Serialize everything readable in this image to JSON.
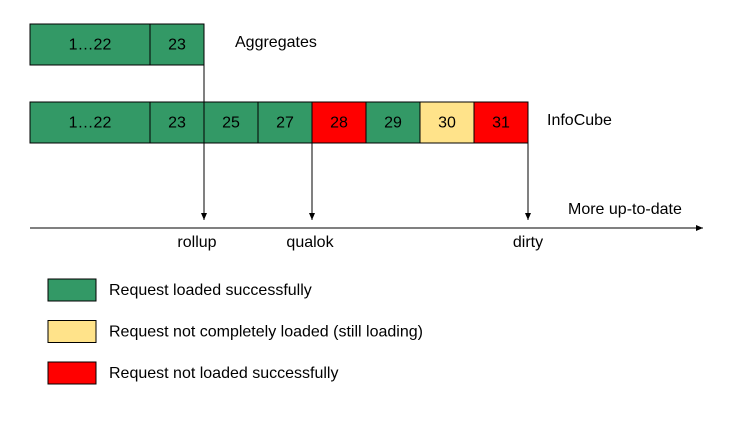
{
  "aggregates": {
    "label": "Aggregates",
    "cells": [
      {
        "label": "1…22",
        "color": "#339966"
      },
      {
        "label": "23",
        "color": "#339966"
      }
    ]
  },
  "infocube": {
    "label": "InfoCube",
    "cells": [
      {
        "label": "1…22",
        "color": "#339966"
      },
      {
        "label": "23",
        "color": "#339966"
      },
      {
        "label": "25",
        "color": "#339966"
      },
      {
        "label": "27",
        "color": "#339966"
      },
      {
        "label": "28",
        "color": "#ff0000"
      },
      {
        "label": "29",
        "color": "#339966"
      },
      {
        "label": "30",
        "color": "#ffe38a"
      },
      {
        "label": "31",
        "color": "#ff0000"
      }
    ]
  },
  "axis_label": "More up-to-date",
  "markers": [
    "rollup",
    "qualok",
    "dirty"
  ],
  "legend": [
    {
      "label": "Request loaded successfully",
      "color": "#339966"
    },
    {
      "label": "Request not completely loaded (still loading)",
      "color": "#ffe38a"
    },
    {
      "label": "Request not loaded successfully",
      "color": "#ff0000"
    }
  ]
}
